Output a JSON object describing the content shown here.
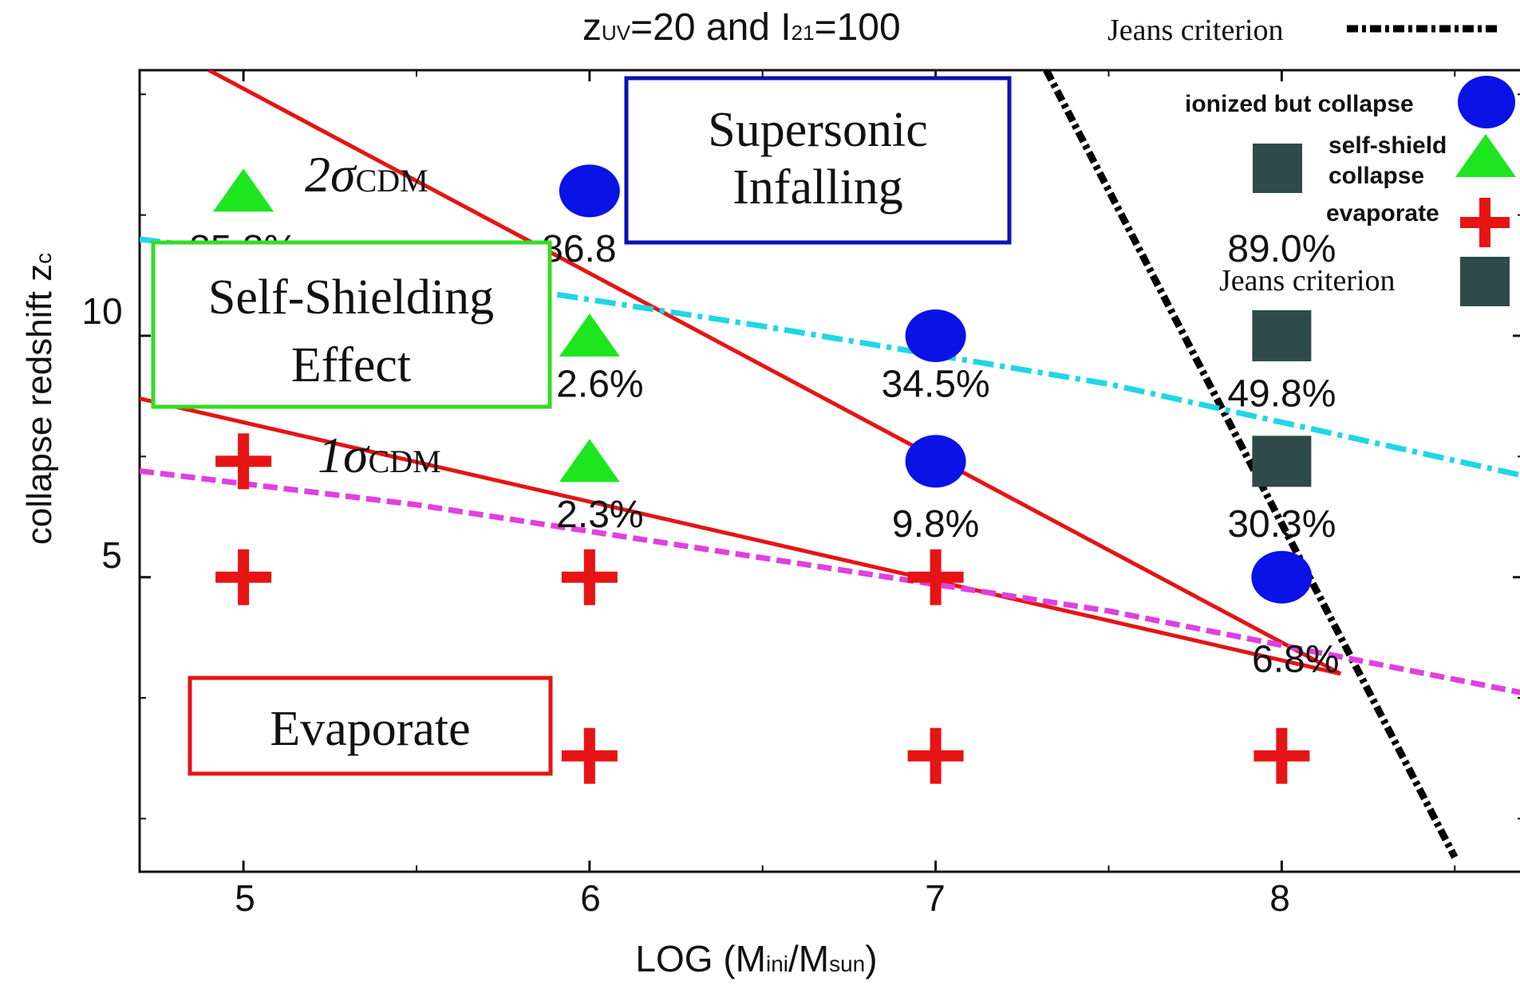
{
  "chart_data": {
    "type": "scatter",
    "title": "z",
    "title_sub": "UV",
    "title_rest": "=20 and I",
    "title_sub2": "21",
    "title_rest2": "=100",
    "xlabel_main": "LOG (M",
    "xlabel_sub1": "ini",
    "xlabel_mid": "/M",
    "xlabel_sub2": "sun",
    "xlabel_end": ")",
    "ylabel": "collapse redshift z",
    "ylabel_sub": "c",
    "x_ticks": [
      "5",
      "6",
      "7",
      "8"
    ],
    "y_ticks": [
      "5",
      "10"
    ],
    "xlim": [
      4.7,
      8.7
    ],
    "ylim": [
      -1.1,
      15.5
    ],
    "grid": false,
    "legend_position": "top-right",
    "legend": {
      "top_label": "Jeans criterion",
      "ionized": "ionized but collapse",
      "selfshield_1": "self-shield",
      "selfshield_2": "collapse",
      "evaporate": "evaporate",
      "jeans": "Jeans criterion"
    },
    "series": [
      {
        "name": "ionized but collapse",
        "marker": "circle",
        "color": "#0a12e6",
        "points": [
          [
            6,
            13
          ],
          [
            7,
            10
          ],
          [
            7,
            7.4
          ],
          [
            8,
            5
          ]
        ]
      },
      {
        "name": "self-shield collapse",
        "marker": "triangle",
        "color": "#1ee61e",
        "points": [
          [
            5,
            13
          ],
          [
            6,
            10
          ],
          [
            6,
            7.4
          ]
        ]
      },
      {
        "name": "evaporate",
        "marker": "plus",
        "color": "#e61414",
        "points": [
          [
            5,
            7.4
          ],
          [
            5,
            5
          ],
          [
            6,
            5
          ],
          [
            7,
            5
          ],
          [
            6,
            1.3
          ],
          [
            7,
            1.3
          ],
          [
            8,
            1.3
          ]
        ]
      },
      {
        "name": "Jeans criterion",
        "marker": "square",
        "color": "#2f4a4a",
        "points": [
          [
            8,
            10
          ],
          [
            8,
            7.4
          ]
        ]
      }
    ],
    "percent_labels": [
      {
        "text": "85.8%",
        "x": 5,
        "y": 11.8
      },
      {
        "text": "86.8",
        "x": 5.97,
        "y": 11.8
      },
      {
        "text": "2.6%",
        "x": 6.03,
        "y": 9.0
      },
      {
        "text": "2.3%",
        "x": 6.03,
        "y": 6.3
      },
      {
        "text": "34.5%",
        "x": 7,
        "y": 9.0
      },
      {
        "text": "9.8%",
        "x": 7,
        "y": 6.1
      },
      {
        "text": "89.0%",
        "x": 8,
        "y": 11.8
      },
      {
        "text": "49.8%",
        "x": 8,
        "y": 8.8
      },
      {
        "text": "30.3%",
        "x": 8,
        "y": 6.1
      },
      {
        "text": "6.8%",
        "x": 8.04,
        "y": 3.3
      }
    ],
    "lines": [
      {
        "name": "Jeans criterion",
        "style": "dotted-black",
        "color": "#000000",
        "points": [
          [
            7.32,
            15.5
          ],
          [
            8.5,
            -0.8
          ]
        ]
      },
      {
        "name": "2σCDM",
        "style": "solid",
        "color": "#e61414",
        "points": [
          [
            4.9,
            15.5
          ],
          [
            8.17,
            3.0
          ]
        ]
      },
      {
        "name": "1σCDM",
        "style": "solid",
        "color": "#e61414",
        "points": [
          [
            4.7,
            8.7
          ],
          [
            8.17,
            3.0
          ]
        ]
      },
      {
        "name": "cyan",
        "style": "dash-dot",
        "color": "#1fd6e6",
        "points": [
          [
            4.7,
            12.0
          ],
          [
            5.5,
            11.3
          ],
          [
            6.5,
            10.2
          ],
          [
            7.5,
            9.0
          ],
          [
            8.7,
            7.1
          ]
        ]
      },
      {
        "name": "magenta",
        "style": "dashed",
        "color": "#e040e0",
        "points": [
          [
            4.7,
            7.2
          ],
          [
            5.5,
            6.5
          ],
          [
            6.5,
            5.4
          ],
          [
            7.5,
            4.3
          ],
          [
            8.7,
            2.6
          ]
        ]
      }
    ],
    "annotations": {
      "sigma2_prefix": "2σ",
      "sigma2_sub": "CDM",
      "sigma1_prefix": "1σ",
      "sigma1_sub": "CDM",
      "supersonic_1": "Supersonic",
      "supersonic_2": "Infalling",
      "selfshield_1": "Self-Shielding",
      "selfshield_2": "Effect",
      "evaporate": "Evaporate"
    },
    "annotation_colors": {
      "supersonic": "#0a12b4",
      "selfshield": "#33dd22",
      "evaporate": "#e61414"
    }
  }
}
